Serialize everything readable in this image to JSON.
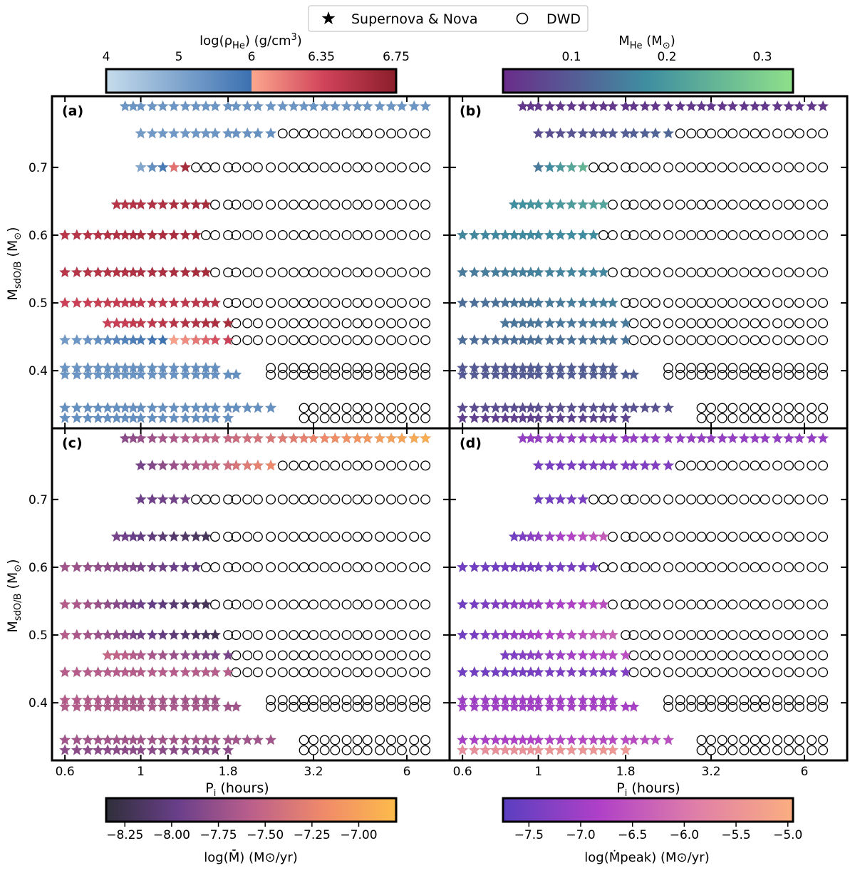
{
  "legend": {
    "entries": [
      {
        "label": "Supernova & Nova",
        "marker": "star-filled"
      },
      {
        "label": "DWD",
        "marker": "circle-open"
      }
    ]
  },
  "colorbars": {
    "rho": {
      "label_base": "log(ρ",
      "label_sub": "He",
      "label_unit": ") (g/cm",
      "label_sup": "3",
      "label_end": ")",
      "ticks": [
        "4",
        "5",
        "6",
        "6.35",
        "6.75"
      ],
      "segments": [
        {
          "range": [
            4,
            6
          ],
          "colors": [
            "#c6dcec",
            "#3b70b0"
          ]
        },
        {
          "range": [
            6,
            6.75
          ],
          "colors": [
            "#fca78e",
            "#d1435a",
            "#8b1e2a"
          ]
        }
      ]
    },
    "mhe": {
      "label_base": "M",
      "label_sub": "He",
      "label_unit": " (M",
      "label_sub2": "⊙",
      "label_end": ")",
      "ticks": [
        "0.1",
        "0.2",
        "0.3"
      ],
      "tick_values": [
        0.1,
        0.2,
        0.3
      ],
      "range": [
        0.03,
        0.33
      ],
      "colors": [
        "#6a2c8a",
        "#3f8fa1",
        "#8fe08a"
      ]
    },
    "mdot": {
      "label": "log(M̄̇) (M⊙/yr)",
      "ticks": [
        "−8.25",
        "−8.00",
        "−7.75",
        "−7.50",
        "−7.25",
        "−7.00"
      ],
      "tick_values": [
        -8.25,
        -8.0,
        -7.75,
        -7.5,
        -7.25,
        -7.0
      ],
      "range": [
        -8.35,
        -6.8
      ],
      "colors": [
        "#2f2f3a",
        "#6a3f8a",
        "#bb5f8b",
        "#f08a6a",
        "#fdbb4a"
      ]
    },
    "mdotpeak": {
      "label": "log(Ṁpeak) (M⊙/yr)",
      "ticks": [
        "−7.5",
        "−7.0",
        "−6.5",
        "−6.0",
        "−5.5",
        "−5.0"
      ],
      "tick_values": [
        -7.5,
        -7.0,
        -6.5,
        -6.0,
        -5.5,
        -5.0
      ],
      "range": [
        -7.75,
        -4.95
      ],
      "colors": [
        "#5a3fc0",
        "#b040c8",
        "#e07fa8",
        "#fbae80"
      ]
    }
  },
  "axes": {
    "ylabel": "MsdO/B (M⊙)",
    "xlabel": "Pi (hours)",
    "yticks": [
      "0.4",
      "0.5",
      "0.6",
      "0.7"
    ],
    "xticks": [
      "0.6",
      "1",
      "1.8",
      "3.2",
      "6"
    ]
  },
  "panels": [
    {
      "label": "(a)",
      "color_key": "rho"
    },
    {
      "label": "(b)",
      "color_key": "mhe"
    },
    {
      "label": "(c)",
      "color_key": "mdot"
    },
    {
      "label": "(d)",
      "color_key": "mdotpeak"
    }
  ],
  "chart_data": {
    "type": "scatter",
    "x_scale": "log",
    "x_unit": "hours",
    "xlim": [
      0.55,
      8.0
    ],
    "ylim": [
      0.315,
      0.805
    ],
    "x_grid": [
      0.6,
      0.65,
      0.7,
      0.75,
      0.8,
      0.85,
      0.9,
      0.95,
      1.0,
      1.08,
      1.16,
      1.25,
      1.35,
      1.45,
      1.55,
      1.65,
      1.8,
      1.9,
      2.05,
      2.2,
      2.4,
      2.6,
      2.8,
      3.0,
      3.2,
      3.45,
      3.7,
      4.0,
      4.3,
      4.6,
      5.0,
      5.4,
      5.8,
      6.3,
      6.8
    ],
    "rows": [
      {
        "mass": 0.79,
        "stars": [
          6,
          34
        ],
        "circles": null,
        "rho": [
          5.3,
          5.3
        ],
        "mhe": [
          0.05,
          0.05
        ],
        "mdot": [
          -7.8,
          -6.9
        ],
        "mdotpeak": [
          -7.1,
          -7.1
        ]
      },
      {
        "mass": 0.75,
        "stars": [
          8,
          20
        ],
        "circles": [
          21,
          34
        ],
        "rho": [
          5.2,
          5.4
        ],
        "mhe": [
          0.08,
          0.12
        ],
        "mdot": [
          -7.9,
          -7.2
        ],
        "mdotpeak": [
          -7.4,
          -7.3
        ]
      },
      {
        "mass": 0.7,
        "stars": [
          8,
          12
        ],
        "circles": [
          13,
          34
        ],
        "rho": [
          5.0,
          6.6
        ],
        "mhe": [
          0.15,
          0.25
        ],
        "mdot": [
          -7.95,
          -7.9
        ],
        "mdotpeak": [
          -7.5,
          -7.4
        ]
      },
      {
        "mass": 0.645,
        "stars": [
          5,
          14
        ],
        "circles": [
          15,
          34
        ],
        "rho": [
          6.5,
          6.6
        ],
        "mhe": [
          0.18,
          0.22
        ],
        "mdot": [
          -7.9,
          -8.2
        ],
        "mdotpeak": [
          -7.5,
          -6.4
        ]
      },
      {
        "mass": 0.6,
        "stars": [
          0,
          13
        ],
        "circles": [
          14,
          34
        ],
        "rho": [
          6.5,
          6.6
        ],
        "mhe": [
          0.17,
          0.18
        ],
        "mdot": [
          -7.7,
          -8.0
        ],
        "mdotpeak": [
          -7.5,
          -7.4
        ]
      },
      {
        "mass": 0.545,
        "stars": [
          0,
          14
        ],
        "circles": [
          15,
          34
        ],
        "rho": [
          6.5,
          6.6
        ],
        "mhe": [
          0.15,
          0.17
        ],
        "mdot": [
          -7.6,
          -8.2
        ],
        "mdotpeak": [
          -7.5,
          -6.6
        ]
      },
      {
        "mass": 0.5,
        "stars": [
          0,
          15
        ],
        "circles": [
          16,
          34
        ],
        "rho": [
          6.4,
          6.5
        ],
        "mhe": [
          0.13,
          0.16
        ],
        "mdot": [
          -7.6,
          -8.2
        ],
        "mdotpeak": [
          -7.5,
          -6.3
        ]
      },
      {
        "mass": 0.47,
        "stars": [
          4,
          16
        ],
        "circles": [
          17,
          34
        ],
        "rho": [
          6.4,
          6.6
        ],
        "mhe": [
          0.14,
          0.15
        ],
        "mdot": [
          -7.5,
          -7.9
        ],
        "mdotpeak": [
          -7.4,
          -6.6
        ]
      },
      {
        "mass": 0.445,
        "stars": [
          0,
          16
        ],
        "circles": [
          17,
          34
        ],
        "rho": [
          5.2,
          6.4
        ],
        "mhe": [
          0.13,
          0.14
        ],
        "mdot": [
          -7.6,
          -7.6
        ],
        "mdotpeak": [
          -7.5,
          -7.3
        ]
      },
      {
        "mass": 0.404,
        "stars": [
          0,
          15
        ],
        "circles": [
          20,
          34
        ],
        "rho": [
          5.3,
          5.4
        ],
        "mhe": [
          0.1,
          0.11
        ],
        "mdot": [
          -7.6,
          -7.7
        ],
        "mdotpeak": [
          -7.0,
          -6.9
        ]
      },
      {
        "mass": 0.394,
        "stars": [
          0,
          17
        ],
        "circles": [
          20,
          34
        ],
        "rho": [
          5.3,
          5.4
        ],
        "mhe": [
          0.1,
          0.11
        ],
        "mdot": [
          -7.6,
          -7.7
        ],
        "mdotpeak": [
          -7.0,
          -6.9
        ]
      },
      {
        "mass": 0.345,
        "stars": [
          0,
          20
        ],
        "circles": [
          23,
          34
        ],
        "rho": [
          5.4,
          5.4
        ],
        "mhe": [
          0.08,
          0.09
        ],
        "mdot": [
          -7.7,
          -7.7
        ],
        "mdotpeak": [
          -6.9,
          -6.6
        ]
      },
      {
        "mass": 0.33,
        "stars": [
          0,
          16
        ],
        "circles": [
          23,
          34
        ],
        "rho": [
          5.4,
          5.4
        ],
        "mhe": [
          0.06,
          0.07
        ],
        "mdot": [
          -7.8,
          -7.8
        ],
        "mdotpeak": [
          -5.6,
          -5.4
        ]
      }
    ]
  }
}
